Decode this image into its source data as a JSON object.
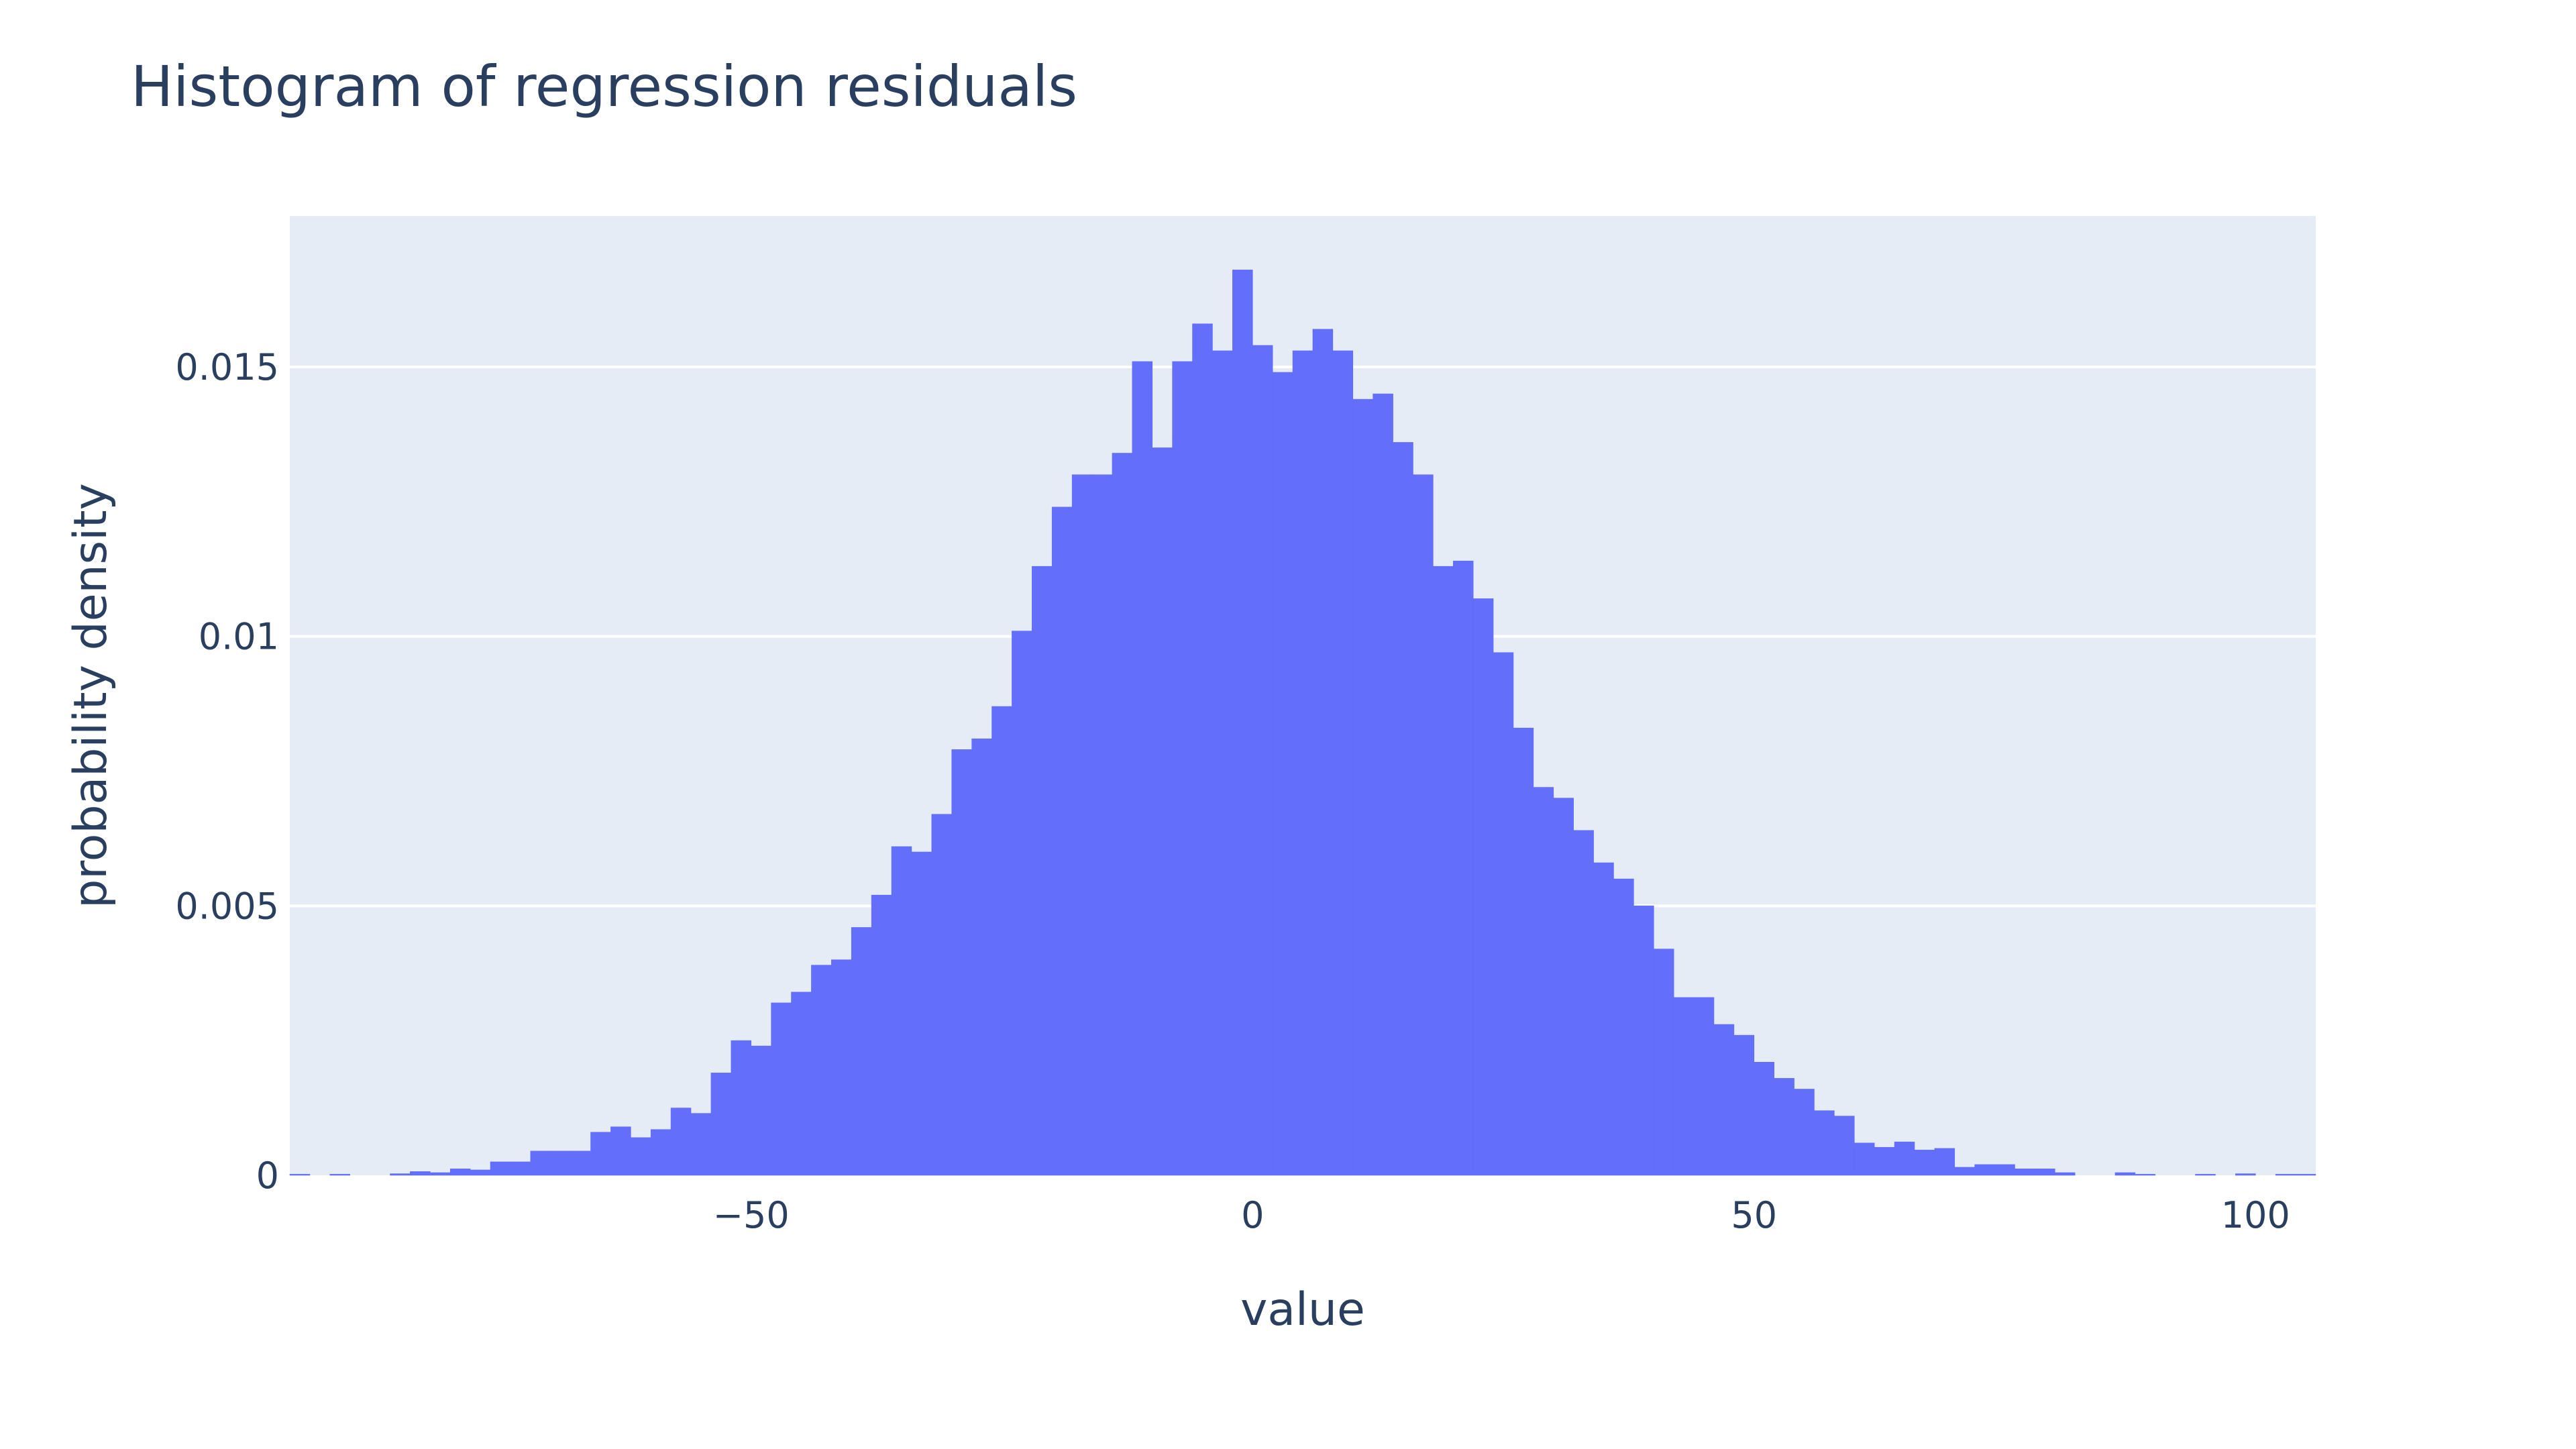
{
  "chart_data": {
    "type": "bar",
    "title": "Histogram of regression residuals",
    "xlabel": "value",
    "ylabel": "probability density",
    "xlim": [
      -96,
      106
    ],
    "ylim": [
      0,
      0.0178
    ],
    "grid": true,
    "bin_width": 2,
    "x": [
      -95,
      -93,
      -91,
      -89,
      -87,
      -85,
      -83,
      -81,
      -79,
      -77,
      -75,
      -73,
      -71,
      -69,
      -67,
      -65,
      -63,
      -61,
      -59,
      -57,
      -55,
      -53,
      -51,
      -49,
      -47,
      -45,
      -43,
      -41,
      -39,
      -37,
      -35,
      -33,
      -31,
      -29,
      -27,
      -25,
      -23,
      -21,
      -19,
      -17,
      -15,
      -13,
      -11,
      -9,
      -7,
      -5,
      -3,
      -1,
      1,
      3,
      5,
      7,
      9,
      11,
      13,
      15,
      17,
      19,
      21,
      23,
      25,
      27,
      29,
      31,
      33,
      35,
      37,
      39,
      41,
      43,
      45,
      47,
      49,
      51,
      53,
      55,
      57,
      59,
      61,
      63,
      65,
      67,
      69,
      71,
      73,
      75,
      77,
      79,
      81,
      83,
      85,
      87,
      89,
      91,
      93,
      95,
      97,
      99,
      101,
      103,
      105
    ],
    "values": [
      2e-05,
      0,
      2e-05,
      0,
      0,
      3e-05,
      7e-05,
      5e-05,
      0.00012,
      0.0001,
      0.00025,
      0.00025,
      0.00045,
      0.00045,
      0.00045,
      0.0008,
      0.0009,
      0.0007,
      0.00085,
      0.00125,
      0.00115,
      0.0019,
      0.0025,
      0.0024,
      0.0032,
      0.0034,
      0.0039,
      0.004,
      0.0046,
      0.0052,
      0.0061,
      0.006,
      0.0067,
      0.0079,
      0.0081,
      0.0087,
      0.0101,
      0.0113,
      0.0124,
      0.013,
      0.013,
      0.0134,
      0.0151,
      0.0135,
      0.0151,
      0.0158,
      0.0153,
      0.0168,
      0.0154,
      0.0149,
      0.0153,
      0.0157,
      0.0153,
      0.0144,
      0.0145,
      0.0136,
      0.013,
      0.0113,
      0.0114,
      0.0107,
      0.0097,
      0.0083,
      0.0072,
      0.007,
      0.0064,
      0.0058,
      0.0055,
      0.005,
      0.0042,
      0.0033,
      0.0033,
      0.0028,
      0.0026,
      0.0021,
      0.0018,
      0.0016,
      0.0012,
      0.0011,
      0.0006,
      0.00052,
      0.00062,
      0.00047,
      0.0005,
      0.00015,
      0.0002,
      0.0002,
      0.00012,
      0.00012,
      5e-05,
      0,
      0,
      5e-05,
      2e-05,
      0,
      0,
      2e-05,
      0,
      3e-05,
      0,
      2e-05,
      2e-05
    ],
    "x_ticks": [
      {
        "value": -50,
        "label": "−50"
      },
      {
        "value": 0,
        "label": "0"
      },
      {
        "value": 50,
        "label": "50"
      },
      {
        "value": 100,
        "label": "100"
      }
    ],
    "y_ticks": [
      {
        "value": 0,
        "label": "0"
      },
      {
        "value": 0.005,
        "label": "0.005"
      },
      {
        "value": 0.01,
        "label": "0.01"
      },
      {
        "value": 0.015,
        "label": "0.015"
      }
    ],
    "colors": {
      "bar": "#636efa",
      "plot_bg": "#e5ecf6",
      "grid": "#ffffff",
      "text": "#2a3f5f"
    }
  }
}
